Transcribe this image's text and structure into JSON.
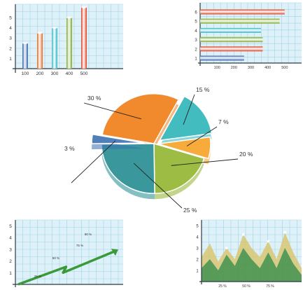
{
  "colors": {
    "grid_bg": "#dff1f8",
    "grid_line": "#9fd3e6",
    "axis": "#2a3a44",
    "bar_blue": "#2f5fa8",
    "bar_orange": "#e8620f",
    "bar_teal": "#2bb5c4",
    "bar_green": "#7da822",
    "bar_red": "#e03a1a",
    "pie_orange": "#f07a10",
    "pie_teal": "#2ab3b8",
    "pie_green": "#8fb32a",
    "pie_dark_teal": "#1f8a8f",
    "pie_yellow_orange": "#f5a020",
    "pie_blue": "#3a6fb0",
    "line_green": "#3a9a3a",
    "area_dark": "#2e8a4a",
    "area_mid": "#6cc08a",
    "area_yellow": "#d8c46a"
  },
  "chart_data": [
    {
      "type": "bar",
      "orientation": "vertical",
      "position": "top-left",
      "categories": [
        "100",
        "200",
        "300",
        "400",
        "500"
      ],
      "values": [
        2.5,
        3.5,
        4,
        5,
        6
      ],
      "yticks": [
        "1",
        "2",
        "3",
        "4",
        "5"
      ],
      "ylim": [
        0,
        6.3
      ],
      "grid": true
    },
    {
      "type": "bar",
      "orientation": "horizontal",
      "position": "top-right",
      "categories": [
        "1",
        "2",
        "3",
        "4",
        "5",
        "6"
      ],
      "values": [
        260,
        370,
        370,
        360,
        470,
        500
      ],
      "xticks": [
        "100",
        "200",
        "300",
        "400",
        "500"
      ],
      "xlim": [
        0,
        600
      ],
      "grid": true
    },
    {
      "type": "pie",
      "position": "center",
      "labels": [
        "30 %",
        "15 %",
        "7 %",
        "20 %",
        "25 %",
        "3 %"
      ],
      "values": [
        30,
        15,
        7,
        20,
        25,
        3
      ]
    },
    {
      "type": "line",
      "position": "bottom-left",
      "x": [
        0,
        1.6,
        1.5,
        3.2
      ],
      "y": [
        0,
        1.5,
        1,
        2.8
      ],
      "yticks": [
        "1",
        "2",
        "3",
        "4",
        "5"
      ],
      "annotations": [
        "25 %",
        "50 %",
        "75 %",
        "80 %"
      ],
      "grid": true
    },
    {
      "type": "area",
      "position": "bottom-right",
      "xticks": [
        "25 %",
        "50 %",
        "75 %"
      ],
      "yticks": [
        "1",
        "2",
        "3",
        "4",
        "5"
      ],
      "series": [
        {
          "values": [
            2.2,
            3.4,
            1.8,
            3.0,
            2.0,
            4.2,
            3.0,
            2.2,
            3.6,
            2.0,
            4.4,
            2.6,
            1.2
          ]
        },
        {
          "values": [
            1.2,
            2.0,
            1.0,
            2.4,
            1.4,
            3.0,
            2.0,
            1.2,
            2.6,
            1.2,
            3.0,
            1.6,
            0.6
          ]
        }
      ],
      "ylim": [
        0,
        5.5
      ],
      "grid": true
    }
  ]
}
